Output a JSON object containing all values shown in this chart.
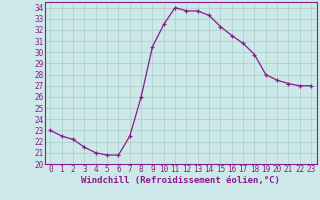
{
  "xlabel": "Windchill (Refroidissement éolien,°C)",
  "x": [
    0,
    1,
    2,
    3,
    4,
    5,
    6,
    7,
    8,
    9,
    10,
    11,
    12,
    13,
    14,
    15,
    16,
    17,
    18,
    19,
    20,
    21,
    22,
    23
  ],
  "y": [
    23.0,
    22.5,
    22.2,
    21.5,
    21.0,
    20.8,
    20.8,
    22.5,
    26.0,
    30.5,
    32.5,
    34.0,
    33.7,
    33.7,
    33.3,
    32.3,
    31.5,
    30.8,
    29.8,
    28.0,
    27.5,
    27.2,
    27.0,
    27.0
  ],
  "line_color": "#8b1a8b",
  "marker": "+",
  "bg_color": "#cce8e8",
  "plot_bg_color": "#cce8e8",
  "grid_color": "#aacccc",
  "spine_color": "#8b1a8b",
  "ylim": [
    20,
    34.5
  ],
  "xlim": [
    -0.5,
    23.5
  ],
  "yticks": [
    20,
    21,
    22,
    23,
    24,
    25,
    26,
    27,
    28,
    29,
    30,
    31,
    32,
    33,
    34
  ],
  "xticks": [
    0,
    1,
    2,
    3,
    4,
    5,
    6,
    7,
    8,
    9,
    10,
    11,
    12,
    13,
    14,
    15,
    16,
    17,
    18,
    19,
    20,
    21,
    22,
    23
  ],
  "tick_label_fontsize": 5.5,
  "xlabel_fontsize": 6.5,
  "tick_color": "#8b1a8b",
  "label_color": "#8b1a8b"
}
